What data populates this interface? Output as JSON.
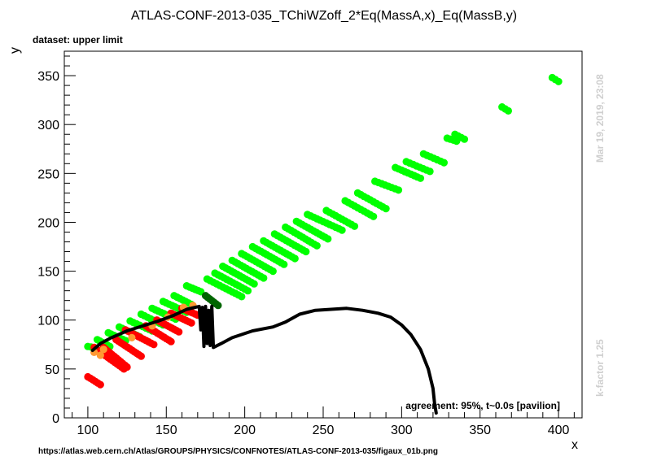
{
  "chart_data": {
    "type": "scatter",
    "title": "ATLAS-CONF-2013-035_TChiWZoff_2*Eq(MassA,x)_Eq(MassB,y)",
    "subtitle": "dataset: upper limit",
    "xlabel": "x",
    "ylabel": "y",
    "xlim": [
      85,
      415
    ],
    "ylim": [
      0,
      375
    ],
    "x_ticks": [
      100,
      150,
      200,
      250,
      300,
      350,
      400
    ],
    "y_ticks": [
      0,
      50,
      100,
      150,
      200,
      250,
      300,
      350
    ],
    "grid": false,
    "agreement_text": "agreement: 95%, t~0.0s [pavilion]",
    "source_url": "https://atlas.web.cern.ch/Atlas/GROUPS/PHYSICS/CONFNOTES/ATLAS-CONF-2013-035/figaux_01b.png",
    "timestamp": "Mar 19, 2019, 23:08",
    "kfactor": "k-factor 1.25",
    "colors": {
      "light_green": "#00ff00",
      "dark_green": "#006600",
      "red": "#ff0000",
      "orange": "#ff9933",
      "contour": "#000000"
    },
    "series": [
      {
        "color": "#00ff00",
        "strips": [
          {
            "from": [
              100,
              73
            ],
            "to": [
              104,
              72
            ],
            "n": 3
          },
          {
            "from": [
              106,
              80
            ],
            "to": [
              114,
              73
            ],
            "n": 6
          },
          {
            "from": [
              113,
              87
            ],
            "to": [
              124,
              79
            ],
            "n": 7
          },
          {
            "from": [
              120,
              93
            ],
            "to": [
              133,
              83
            ],
            "n": 8
          },
          {
            "from": [
              127,
              99
            ],
            "to": [
              141,
              89
            ],
            "n": 8
          },
          {
            "from": [
              134,
              106
            ],
            "to": [
              148,
              95
            ],
            "n": 8
          },
          {
            "from": [
              141,
              112
            ],
            "to": [
              156,
              101
            ],
            "n": 9
          },
          {
            "from": [
              148,
              119
            ],
            "to": [
              163,
              108
            ],
            "n": 9
          },
          {
            "from": [
              155,
              125
            ],
            "to": [
              166,
              116
            ],
            "n": 7
          },
          {
            "from": [
              163,
              135
            ],
            "to": [
              172,
              129
            ],
            "n": 6
          },
          {
            "from": [
              176,
              142
            ],
            "to": [
              198,
              124
            ],
            "n": 12
          },
          {
            "from": [
              181,
              148
            ],
            "to": [
              202,
              130
            ],
            "n": 12
          },
          {
            "from": [
              186,
              155
            ],
            "to": [
              206,
              137
            ],
            "n": 12
          },
          {
            "from": [
              192,
              161
            ],
            "to": [
              212,
              143
            ],
            "n": 12
          },
          {
            "from": [
              198,
              168
            ],
            "to": [
              218,
              150
            ],
            "n": 12
          },
          {
            "from": [
              205,
              175
            ],
            "to": [
              225,
              157
            ],
            "n": 12
          },
          {
            "from": [
              212,
              181
            ],
            "to": [
              232,
              163
            ],
            "n": 12
          },
          {
            "from": [
              219,
              188
            ],
            "to": [
              239,
              170
            ],
            "n": 12
          },
          {
            "from": [
              226,
              195
            ],
            "to": [
              246,
              176
            ],
            "n": 12
          },
          {
            "from": [
              233,
              201
            ],
            "to": [
              253,
              183
            ],
            "n": 12
          },
          {
            "from": [
              240,
              208
            ],
            "to": [
              262,
              192
            ],
            "n": 12
          },
          {
            "from": [
              252,
              212
            ],
            "to": [
              270,
              196
            ],
            "n": 10
          },
          {
            "from": [
              264,
              222
            ],
            "to": [
              282,
              206
            ],
            "n": 10
          },
          {
            "from": [
              272,
              230
            ],
            "to": [
              290,
              214
            ],
            "n": 10
          },
          {
            "from": [
              283,
              242
            ],
            "to": [
              298,
              233
            ],
            "n": 8
          },
          {
            "from": [
              296,
              256
            ],
            "to": [
              312,
              245
            ],
            "n": 9
          },
          {
            "from": [
              303,
              262
            ],
            "to": [
              318,
              252
            ],
            "n": 8
          },
          {
            "from": [
              314,
              270
            ],
            "to": [
              327,
              261
            ],
            "n": 7
          },
          {
            "from": [
              329,
              286
            ],
            "to": [
              335,
              283
            ],
            "n": 4
          },
          {
            "from": [
              334,
              290
            ],
            "to": [
              340,
              285
            ],
            "n": 4
          },
          {
            "from": [
              364,
              318
            ],
            "to": [
              368,
              314
            ],
            "n": 3
          },
          {
            "from": [
              396,
              348
            ],
            "to": [
              400,
              344
            ],
            "n": 3
          }
        ]
      },
      {
        "color": "#ff0000",
        "strips": [
          {
            "from": [
              100,
              42
            ],
            "to": [
              108,
              34
            ],
            "n": 6
          },
          {
            "from": [
              104,
              72
            ],
            "to": [
              123,
              50
            ],
            "n": 14
          },
          {
            "from": [
              110,
              72
            ],
            "to": [
              125,
              52
            ],
            "n": 12
          },
          {
            "from": [
              118,
              80
            ],
            "to": [
              134,
              63
            ],
            "n": 12
          },
          {
            "from": [
              124,
              90
            ],
            "to": [
              142,
              75
            ],
            "n": 12
          },
          {
            "from": [
              137,
              94
            ],
            "to": [
              153,
              78
            ],
            "n": 12
          },
          {
            "from": [
              144,
              100
            ],
            "to": [
              158,
              88
            ],
            "n": 10
          },
          {
            "from": [
              153,
              107
            ],
            "to": [
              166,
              97
            ],
            "n": 9
          },
          {
            "from": [
              160,
              112
            ],
            "to": [
              170,
              105
            ],
            "n": 7
          }
        ]
      },
      {
        "color": "#ff9933",
        "points": [
          [
            104,
            67
          ],
          [
            108,
            64
          ],
          [
            110,
            70
          ],
          [
            128,
            82
          ],
          [
            141,
            94
          ],
          [
            151,
            103
          ],
          [
            161,
            113
          ],
          [
            167,
            115
          ]
        ]
      },
      {
        "color": "#006600",
        "strips": [
          {
            "from": [
              175,
              125
            ],
            "to": [
              183,
              115
            ],
            "n": 7
          }
        ]
      }
    ],
    "contour": [
      [
        103,
        69
      ],
      [
        108,
        76
      ],
      [
        115,
        82
      ],
      [
        125,
        89
      ],
      [
        135,
        94
      ],
      [
        145,
        99
      ],
      [
        155,
        105
      ],
      [
        163,
        111
      ],
      [
        171,
        114
      ],
      [
        172,
        90
      ],
      [
        173,
        113
      ],
      [
        174,
        73
      ],
      [
        175,
        114
      ],
      [
        176,
        76
      ],
      [
        177,
        110
      ],
      [
        178,
        74
      ],
      [
        179,
        114
      ],
      [
        180,
        72
      ],
      [
        185,
        76
      ],
      [
        192,
        82
      ],
      [
        205,
        89
      ],
      [
        218,
        93
      ],
      [
        226,
        98
      ],
      [
        235,
        106
      ],
      [
        245,
        110
      ],
      [
        255,
        111
      ],
      [
        265,
        112
      ],
      [
        275,
        110
      ],
      [
        285,
        107
      ],
      [
        293,
        103
      ],
      [
        300,
        95
      ],
      [
        306,
        85
      ],
      [
        312,
        70
      ],
      [
        317,
        50
      ],
      [
        320,
        30
      ],
      [
        321,
        15
      ],
      [
        322,
        5
      ]
    ]
  }
}
